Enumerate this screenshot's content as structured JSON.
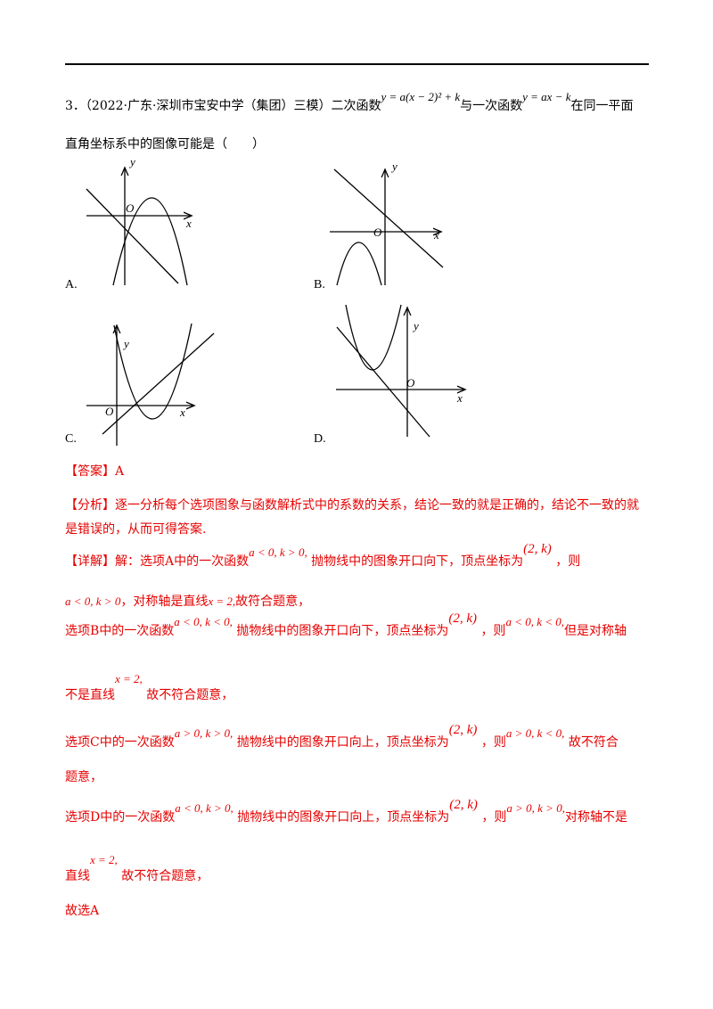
{
  "question": {
    "number": "3．",
    "source": "（2022·广东·深圳市宝安中学（集团）三模）",
    "text1": "二次函数",
    "formula1": "y = a(x − 2)² + k",
    "text2": "与一次函数",
    "formula2": "y = ax − k",
    "text3": "在同一平面",
    "line2": "直角坐标系中的图像可能是（　　）"
  },
  "options": [
    {
      "label": "A.",
      "y_axis": "y",
      "x_axis": "x",
      "origin": "O"
    },
    {
      "label": "B.",
      "y_axis": "y",
      "x_axis": "x",
      "origin": "O"
    },
    {
      "label": "C.",
      "y_axis": "y",
      "x_axis": "x",
      "origin": "O"
    },
    {
      "label": "D.",
      "y_axis": "y",
      "x_axis": "x",
      "origin": "O"
    }
  ],
  "answer": {
    "tag": "【答案】",
    "text": "A"
  },
  "analysis": {
    "tag": "【分析】",
    "lines": [
      "逐一分析每个选项图象与函数解析式中的系数的关系，结论一致的就是正确的，结论不一致的就",
      "是错误的，从而可得答案."
    ]
  },
  "detail": {
    "tag": "【详解】",
    "lines": [
      [
        "解：选项A中的一次函数",
        "a < 0, k > 0,",
        "抛物线中的图象开口向下，顶点坐标为",
        "(2, k)",
        "，则"
      ],
      [
        "a < 0, k > 0",
        "，对称轴是直线",
        "x = 2,",
        "故符合题意，"
      ],
      [
        "选项B中的一次函数",
        "a < 0, k < 0,",
        "抛物线中的图象开口向下，顶点坐标为",
        "(2, k)",
        "，则",
        "a < 0, k < 0,",
        "但是对称轴"
      ],
      [
        "不是直线",
        "x = 2,",
        "故不符合题意，"
      ],
      [
        "选项C中的一次函数",
        "a > 0, k > 0,",
        "抛物线中的图象开口向上，顶点坐标为",
        "(2, k)",
        "，则",
        "a > 0, k < 0,",
        "故不符合"
      ],
      [
        "题意，"
      ],
      [
        "选项D中的一次函数",
        "a < 0, k > 0,",
        "抛物线中的图象开口向上，顶点坐标为",
        "(2, k)",
        "，则",
        "a > 0, k > 0,",
        "对称轴不是"
      ],
      [
        "直线",
        "x = 2,",
        "故不符合题意，"
      ],
      [
        "故选A"
      ]
    ]
  }
}
